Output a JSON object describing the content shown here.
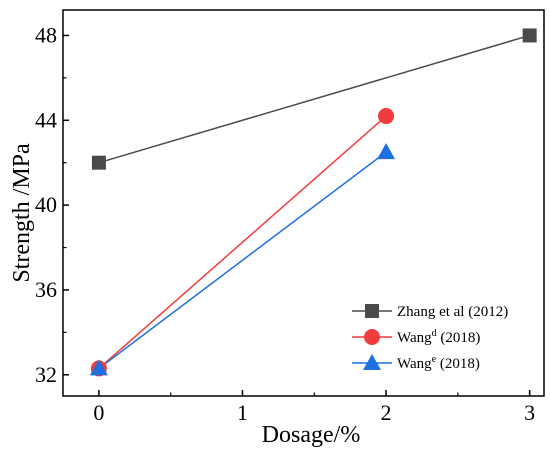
{
  "chart_data": {
    "type": "line",
    "xlabel": "Dosage/%",
    "ylabel": "Strength /MPa",
    "xlim": [
      -0.25,
      3.1
    ],
    "ylim": [
      31.0,
      49.2
    ],
    "xticks": [
      0,
      1,
      2,
      3
    ],
    "yticks": [
      32,
      36,
      40,
      44,
      48
    ],
    "grid": false,
    "legend_position": "bottom-right",
    "series": [
      {
        "name": "Zhang et al (2012)",
        "legend_main": "Zhang et al (2012)",
        "legend_sup": "",
        "legend_tail": "",
        "color": "#4a4a4a",
        "marker": "square",
        "x": [
          0,
          3
        ],
        "y": [
          42.0,
          48.0
        ]
      },
      {
        "name": "Wang^d (2018)",
        "legend_main": "Wang",
        "legend_sup": "d",
        "legend_tail": " (2018)",
        "color": "#f03c3c",
        "marker": "circle",
        "x": [
          0,
          2
        ],
        "y": [
          32.3,
          44.2
        ]
      },
      {
        "name": "Wang^e (2018)",
        "legend_main": "Wang",
        "legend_sup": "e",
        "legend_tail": " (2018)",
        "color": "#1e6fe0",
        "marker": "triangle",
        "x": [
          0,
          2
        ],
        "y": [
          32.3,
          42.5
        ]
      }
    ]
  }
}
